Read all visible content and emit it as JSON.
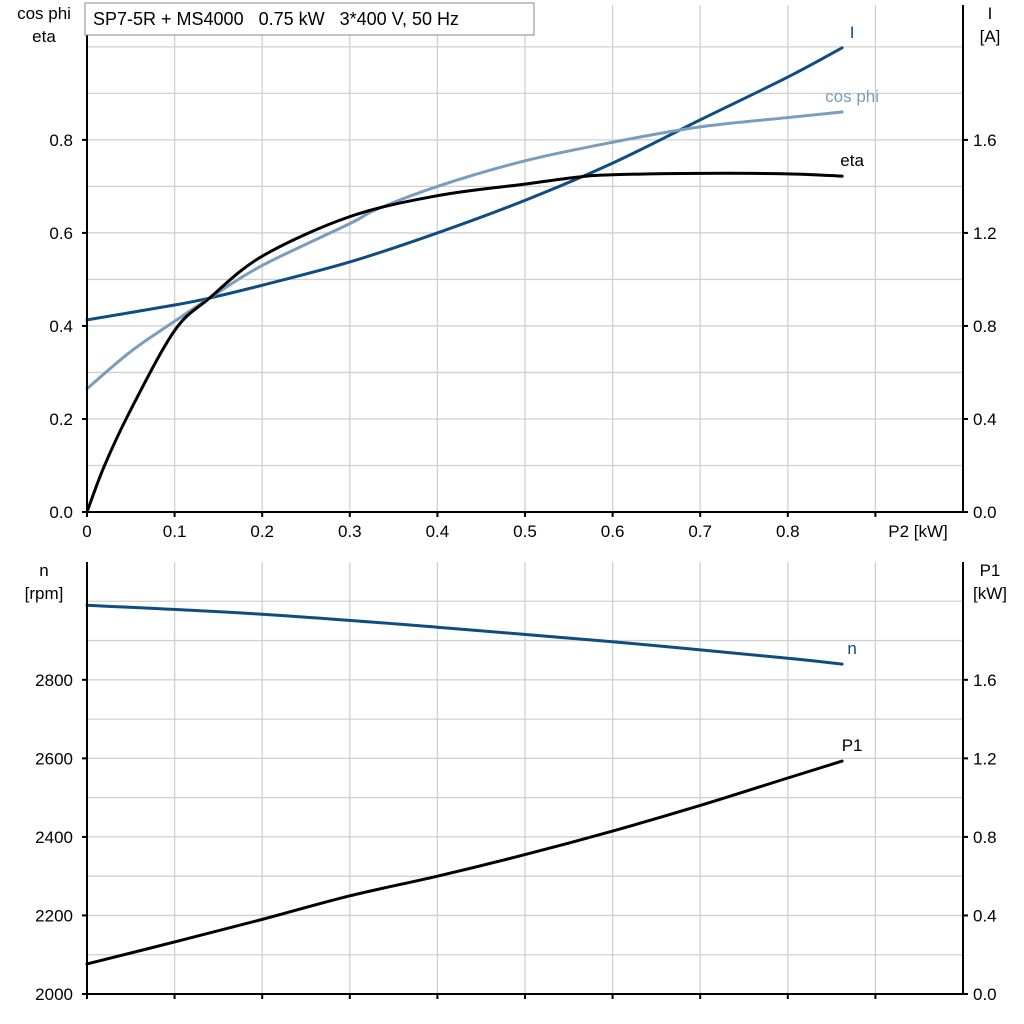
{
  "title": "SP7-5R + MS4000   0.75 kW   3*400 V, 50 Hz",
  "chart_data": [
    {
      "type": "line",
      "xlabel": "P2 [kW]",
      "ylabel_left": [
        "cos phi",
        "eta"
      ],
      "ylabel_right": [
        "I",
        "[A]"
      ],
      "xlim": [
        0,
        1.0
      ],
      "ylim_left": [
        0,
        1.09
      ],
      "ylim_right": [
        0,
        2.18
      ],
      "x_ticks": [
        "0",
        "0.1",
        "0.2",
        "0.3",
        "0.4",
        "0.5",
        "0.6",
        "0.7",
        "0.8"
      ],
      "y_ticks_left": [
        "0.0",
        "0.2",
        "0.4",
        "0.6",
        "0.8"
      ],
      "y_ticks_right": [
        "0.0",
        "0.4",
        "0.8",
        "1.2",
        "1.6"
      ],
      "grid": true,
      "series": [
        {
          "name": "I",
          "axis": "right",
          "color": "#0f4c81",
          "x": [
            0,
            0.1,
            0.14,
            0.2,
            0.3,
            0.4,
            0.5,
            0.6,
            0.7,
            0.8,
            0.862
          ],
          "y": [
            0.826,
            0.89,
            0.92,
            0.975,
            1.075,
            1.2,
            1.34,
            1.5,
            1.686,
            1.87,
            1.996
          ]
        },
        {
          "name": "cos phi",
          "axis": "left",
          "color": "#7a9dbd",
          "x": [
            0,
            0.05,
            0.1,
            0.14,
            0.2,
            0.3,
            0.33,
            0.4,
            0.5,
            0.6,
            0.7,
            0.8,
            0.862
          ],
          "y": [
            0.265,
            0.345,
            0.41,
            0.46,
            0.53,
            0.62,
            0.65,
            0.7,
            0.755,
            0.795,
            0.828,
            0.848,
            0.86
          ]
        },
        {
          "name": "eta",
          "axis": "left",
          "color": "#000000",
          "x": [
            0,
            0.02,
            0.05,
            0.1,
            0.14,
            0.2,
            0.3,
            0.4,
            0.5,
            0.56,
            0.6,
            0.7,
            0.8,
            0.862
          ],
          "y": [
            0,
            0.1,
            0.22,
            0.39,
            0.46,
            0.55,
            0.635,
            0.68,
            0.705,
            0.72,
            0.725,
            0.728,
            0.727,
            0.722
          ]
        }
      ]
    },
    {
      "type": "line",
      "ylabel_left": [
        "n",
        "[rpm]"
      ],
      "ylabel_right": [
        "P1",
        "[kW]"
      ],
      "xlim": [
        0,
        1.0
      ],
      "ylim_left": [
        2000,
        3100
      ],
      "ylim_right": [
        0,
        2.2
      ],
      "y_ticks_left": [
        "2000",
        "2200",
        "2400",
        "2600",
        "2800"
      ],
      "y_ticks_right": [
        "0.0",
        "0.4",
        "0.8",
        "1.2",
        "1.6"
      ],
      "grid": true,
      "series": [
        {
          "name": "n",
          "axis": "left",
          "color": "#0f4c81",
          "x": [
            0,
            0.2,
            0.4,
            0.6,
            0.8,
            0.862
          ],
          "y": [
            2990,
            2967,
            2934,
            2897,
            2855,
            2840
          ]
        },
        {
          "name": "P1",
          "axis": "right",
          "color": "#000000",
          "x": [
            0,
            0.1,
            0.2,
            0.3,
            0.4,
            0.5,
            0.6,
            0.7,
            0.8,
            0.862
          ],
          "y": [
            0.153,
            0.265,
            0.38,
            0.5,
            0.6,
            0.71,
            0.83,
            0.96,
            1.1,
            1.186
          ]
        }
      ]
    }
  ]
}
